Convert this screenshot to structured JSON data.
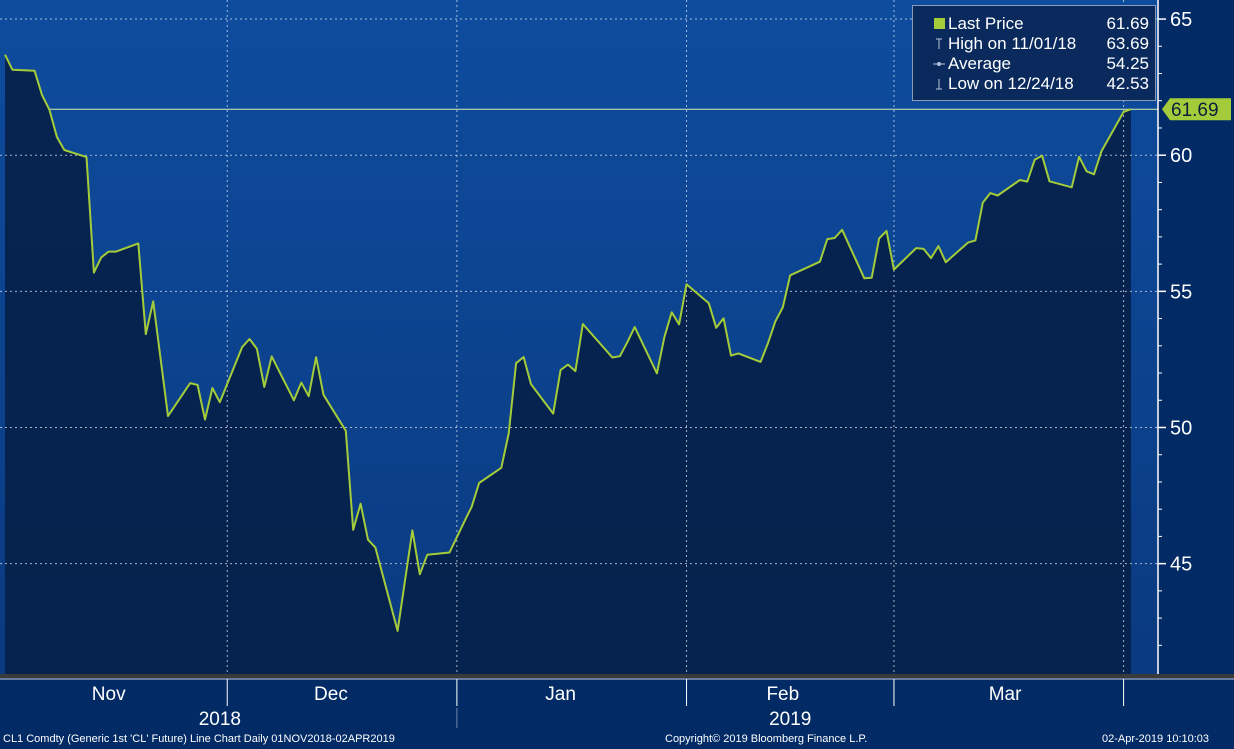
{
  "chart_data": {
    "type": "area",
    "title": "",
    "xlabel": "",
    "ylabel": "",
    "ylim": [
      40.8,
      65.7
    ],
    "y_ticks": [
      45,
      50,
      55,
      60,
      65
    ],
    "x_month_labels": [
      "Nov",
      "Dec",
      "Jan",
      "Feb",
      "Mar"
    ],
    "x_year_labels": [
      "2018",
      "2019"
    ],
    "grid": true,
    "legend_position": "top-right",
    "series": [
      {
        "name": "Last Price",
        "dates": [
          "2018-11-01",
          "2018-11-02",
          "2018-11-05",
          "2018-11-06",
          "2018-11-07",
          "2018-11-08",
          "2018-11-09",
          "2018-11-12",
          "2018-11-13",
          "2018-11-14",
          "2018-11-15",
          "2018-11-16",
          "2018-11-19",
          "2018-11-20",
          "2018-11-21",
          "2018-11-23",
          "2018-11-26",
          "2018-11-27",
          "2018-11-28",
          "2018-11-29",
          "2018-11-30",
          "2018-12-03",
          "2018-12-04",
          "2018-12-05",
          "2018-12-06",
          "2018-12-07",
          "2018-12-10",
          "2018-12-11",
          "2018-12-12",
          "2018-12-13",
          "2018-12-14",
          "2018-12-17",
          "2018-12-18",
          "2018-12-19",
          "2018-12-20",
          "2018-12-21",
          "2018-12-24",
          "2018-12-26",
          "2018-12-27",
          "2018-12-28",
          "2018-12-31",
          "2019-01-02",
          "2019-01-03",
          "2019-01-04",
          "2019-01-07",
          "2019-01-08",
          "2019-01-09",
          "2019-01-10",
          "2019-01-11",
          "2019-01-14",
          "2019-01-15",
          "2019-01-16",
          "2019-01-17",
          "2019-01-18",
          "2019-01-22",
          "2019-01-23",
          "2019-01-24",
          "2019-01-25",
          "2019-01-28",
          "2019-01-29",
          "2019-01-30",
          "2019-01-31",
          "2019-02-01",
          "2019-02-04",
          "2019-02-05",
          "2019-02-06",
          "2019-02-07",
          "2019-02-08",
          "2019-02-11",
          "2019-02-12",
          "2019-02-13",
          "2019-02-14",
          "2019-02-15",
          "2019-02-19",
          "2019-02-20",
          "2019-02-21",
          "2019-02-22",
          "2019-02-25",
          "2019-02-26",
          "2019-02-27",
          "2019-02-28",
          "2019-03-01",
          "2019-03-04",
          "2019-03-05",
          "2019-03-06",
          "2019-03-07",
          "2019-03-08",
          "2019-03-11",
          "2019-03-12",
          "2019-03-13",
          "2019-03-14",
          "2019-03-15",
          "2019-03-18",
          "2019-03-19",
          "2019-03-20",
          "2019-03-21",
          "2019-03-22",
          "2019-03-25",
          "2019-03-26",
          "2019-03-27",
          "2019-03-28",
          "2019-03-29",
          "2019-04-01",
          "2019-04-02"
        ],
        "values": [
          63.69,
          63.14,
          63.1,
          62.21,
          61.67,
          60.67,
          60.19,
          59.93,
          55.69,
          56.25,
          56.46,
          56.46,
          56.76,
          53.43,
          54.63,
          50.42,
          51.63,
          51.56,
          50.29,
          51.45,
          50.93,
          52.95,
          53.25,
          52.89,
          51.49,
          52.61,
          51.0,
          51.65,
          51.15,
          52.58,
          51.2,
          49.88,
          46.24,
          47.2,
          45.88,
          45.59,
          42.53,
          46.22,
          44.61,
          45.33,
          45.41,
          46.54,
          47.09,
          47.96,
          48.52,
          49.78,
          52.36,
          52.59,
          51.59,
          50.51,
          52.11,
          52.31,
          52.07,
          53.8,
          52.57,
          52.62,
          53.13,
          53.69,
          51.99,
          53.31,
          54.23,
          53.79,
          55.26,
          54.56,
          53.66,
          54.01,
          52.64,
          52.72,
          52.41,
          53.1,
          53.9,
          54.41,
          55.59,
          56.09,
          56.92,
          56.96,
          57.26,
          55.48,
          55.5,
          56.94,
          57.22,
          55.8,
          56.59,
          56.56,
          56.22,
          56.66,
          56.07,
          56.79,
          56.87,
          58.26,
          58.61,
          58.52,
          59.09,
          59.03,
          59.83,
          59.98,
          59.04,
          58.82,
          59.94,
          59.41,
          59.3,
          60.14,
          61.59,
          61.69
        ]
      }
    ],
    "stats": [
      {
        "label": "Last Price",
        "value": "61.69",
        "marker": "swatch"
      },
      {
        "label": "High on 11/01/18",
        "value": "63.69",
        "marker": "high"
      },
      {
        "label": "Average",
        "value": "54.25",
        "marker": "avg"
      },
      {
        "label": "Low on 12/24/18",
        "value": "42.53",
        "marker": "low"
      }
    ],
    "last_price_label": "61.69"
  },
  "footer": {
    "left": "CL1 Comdty (Generic 1st 'CL' Future) Line Chart  Daily 01NOV2018-02APR2019",
    "center": "Copyright© 2019 Bloomberg Finance L.P.",
    "right": "02-Apr-2019 10:10:03"
  },
  "colors": {
    "background": "#022b66",
    "plot_top": "#0e4c9e",
    "plot_bottom": "#0a3a80",
    "fill": "#07214a",
    "line": "#a4cc3a",
    "axis": "#ffffff"
  }
}
